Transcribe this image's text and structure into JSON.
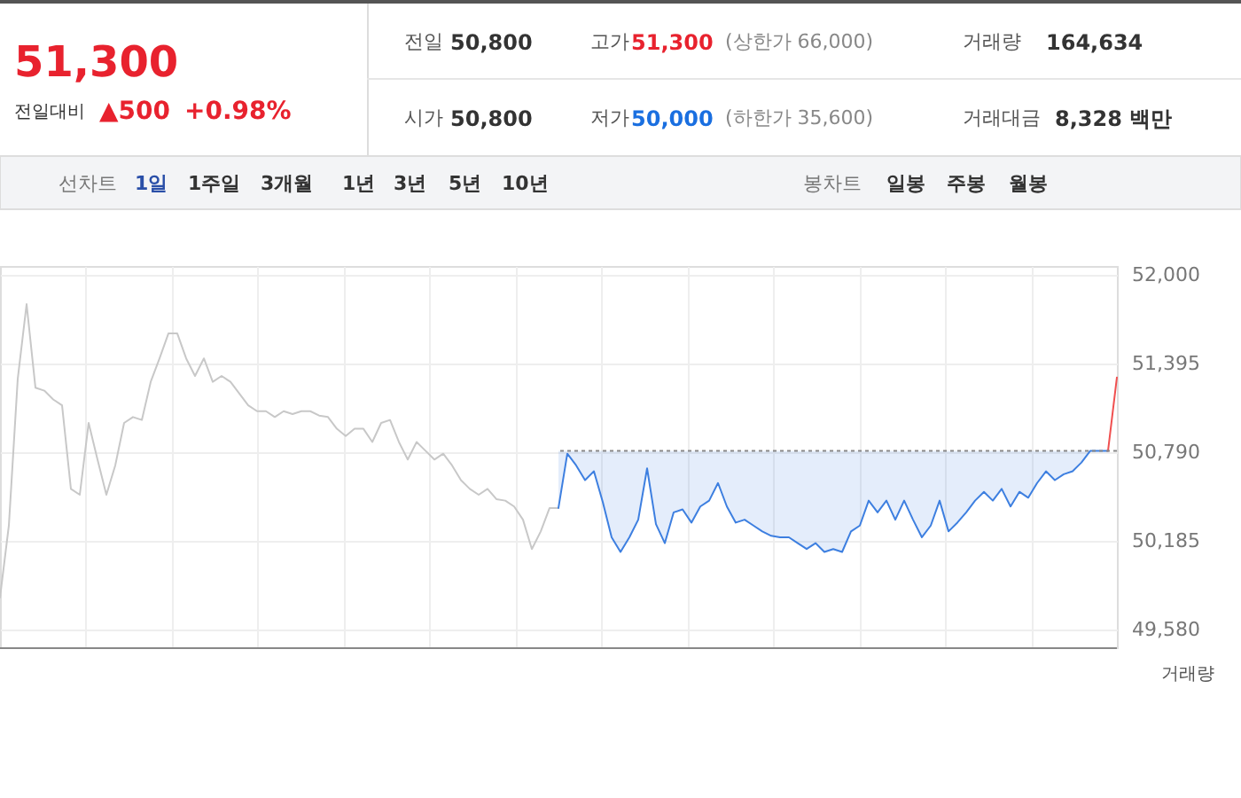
{
  "chart_data": {
    "type": "line",
    "categories": [
      null,
      null,
      null,
      null,
      null,
      null,
      null,
      null,
      null,
      null,
      null,
      null,
      null,
      null,
      null,
      null,
      null,
      null,
      null,
      null,
      null,
      null,
      null,
      null,
      null,
      null,
      null,
      null,
      null,
      null,
      null,
      null,
      null,
      null,
      null,
      null,
      null,
      null,
      null,
      null,
      null,
      null,
      null,
      null,
      null,
      null,
      null,
      null,
      null,
      null,
      null,
      null,
      null,
      null,
      null,
      null,
      null,
      null,
      null,
      null,
      null,
      null,
      null,
      null,
      null,
      null,
      null,
      null,
      null,
      null,
      null,
      null,
      null,
      null,
      null,
      null,
      null,
      null,
      null,
      null,
      null,
      null,
      null,
      null,
      null,
      null,
      null,
      null,
      null,
      null,
      null,
      null,
      null,
      null,
      null,
      null,
      null,
      null,
      null,
      null,
      null,
      null,
      null,
      null,
      null,
      null,
      null,
      null,
      null,
      null,
      null,
      null,
      null,
      null,
      null,
      null,
      null,
      null,
      null,
      null,
      null,
      null,
      null,
      null,
      null,
      null,
      null
    ],
    "series": [
      {
        "type": "line",
        "color": "#c8c8c8",
        "values": [
          49800,
          50290,
          51290,
          51800,
          51230,
          51210,
          51150,
          51110,
          50540,
          50500,
          50990,
          50740,
          50500,
          50700,
          50990,
          51030,
          51010,
          51270,
          51430,
          51600,
          51600,
          51430,
          51310,
          51430,
          51270,
          51310,
          51270,
          51190,
          51110,
          51070,
          51070,
          51030,
          51070,
          51050,
          51070,
          51070,
          51040,
          51030,
          50950,
          50900,
          50950,
          50950,
          50860,
          50990,
          51010,
          50860,
          50740,
          50860,
          50800,
          50740,
          50780,
          50700,
          50600,
          50540,
          50500,
          50540,
          50470,
          50460,
          50420,
          50330,
          50130,
          50250,
          50410,
          50410,
          null,
          null,
          null,
          null,
          null,
          null,
          null,
          null,
          null,
          null,
          null,
          null,
          null,
          null,
          null,
          null,
          null,
          null,
          null,
          null,
          null,
          null,
          null,
          null,
          null,
          null,
          null,
          null,
          null,
          null,
          null,
          null,
          null,
          null,
          null,
          null,
          null,
          null,
          null,
          null,
          null,
          null,
          null,
          null,
          null,
          null,
          null,
          null,
          null,
          null,
          null,
          null,
          null,
          null,
          null,
          null,
          null,
          null,
          null,
          null,
          null,
          null,
          null
        ]
      },
      {
        "type": "line",
        "color": "#3d7fe0",
        "values": [
          null,
          null,
          null,
          null,
          null,
          null,
          null,
          null,
          null,
          null,
          null,
          null,
          null,
          null,
          null,
          null,
          null,
          null,
          null,
          null,
          null,
          null,
          null,
          null,
          null,
          null,
          null,
          null,
          null,
          null,
          null,
          null,
          null,
          null,
          null,
          null,
          null,
          null,
          null,
          null,
          null,
          null,
          null,
          null,
          null,
          null,
          null,
          null,
          null,
          null,
          null,
          null,
          null,
          null,
          null,
          null,
          null,
          null,
          null,
          null,
          null,
          null,
          null,
          50410,
          50780,
          50700,
          50600,
          50660,
          50450,
          50210,
          50110,
          50210,
          50330,
          50680,
          50300,
          50170,
          50380,
          50400,
          50310,
          50420,
          50460,
          50580,
          50420,
          50310,
          50330,
          50290,
          50250,
          50220,
          50210,
          50210,
          50170,
          50130,
          50170,
          50110,
          50130,
          50110,
          50250,
          50290,
          50460,
          50380,
          50460,
          50330,
          50460,
          50330,
          50210,
          50290,
          50460,
          50250,
          50310,
          50380,
          50460,
          50520,
          50460,
          50540,
          50420,
          50520,
          50480,
          50580,
          50660,
          50600,
          50640,
          50660,
          50720,
          50800,
          50800,
          50800,
          null
        ],
        "lower": [
          null,
          null,
          null,
          null,
          null,
          null,
          null,
          null,
          null,
          null,
          null,
          null,
          null,
          null,
          null,
          null,
          null,
          null,
          null,
          null,
          null,
          null,
          null,
          null,
          null,
          null,
          null,
          null,
          null,
          null,
          null,
          null,
          null,
          null,
          null,
          null,
          null,
          null,
          null,
          null,
          null,
          null,
          null,
          null,
          null,
          null,
          null,
          null,
          null,
          null,
          null,
          null,
          null,
          null,
          null,
          null,
          null,
          null,
          null,
          null,
          null,
          null,
          null,
          50410,
          50780,
          50700,
          50600,
          50660,
          50450,
          50210,
          50110,
          50210,
          50330,
          50680,
          50300,
          50170,
          50380,
          50400,
          50310,
          50420,
          50460,
          50580,
          50420,
          50310,
          50330,
          50290,
          50250,
          50220,
          50210,
          50210,
          50170,
          50130,
          50170,
          50110,
          50130,
          50110,
          50250,
          50290,
          50460,
          50380,
          50460,
          50330,
          50460,
          50330,
          50210,
          50290,
          50460,
          50250,
          50310,
          50380,
          50460,
          50520,
          50460,
          50540,
          50420,
          50520,
          50480,
          50580,
          50660,
          50600,
          50640,
          50660,
          50720,
          50800,
          50800,
          50800,
          null
        ],
        "upper": [
          null,
          null,
          null,
          null,
          null,
          null,
          null,
          null,
          null,
          null,
          null,
          null,
          null,
          null,
          null,
          null,
          null,
          null,
          null,
          null,
          null,
          null,
          null,
          null,
          null,
          null,
          null,
          null,
          null,
          null,
          null,
          null,
          null,
          null,
          null,
          null,
          null,
          null,
          null,
          null,
          null,
          null,
          null,
          null,
          null,
          null,
          null,
          null,
          null,
          null,
          null,
          null,
          null,
          null,
          null,
          null,
          null,
          null,
          null,
          null,
          null,
          null,
          null,
          50800,
          50800,
          50800,
          50800,
          50800,
          50800,
          50800,
          50800,
          50800,
          50800,
          50800,
          50800,
          50800,
          50800,
          50800,
          50800,
          50800,
          50800,
          50800,
          50800,
          50800,
          50800,
          50800,
          50800,
          50800,
          50800,
          50800,
          50800,
          50800,
          50800,
          50800,
          50800,
          50800,
          50800,
          50800,
          50800,
          50800,
          50800,
          50800,
          50800,
          50800,
          50800,
          50800,
          50800,
          50800,
          50800,
          50800,
          50800,
          50800,
          50800,
          50800,
          50800,
          50800,
          50800,
          50800,
          50800,
          50800,
          50800,
          50800,
          50800,
          50800,
          50800,
          50800,
          null
        ]
      },
      {
        "type": "line",
        "color": "#f05050",
        "values": [
          null,
          null,
          null,
          null,
          null,
          null,
          null,
          null,
          null,
          null,
          null,
          null,
          null,
          null,
          null,
          null,
          null,
          null,
          null,
          null,
          null,
          null,
          null,
          null,
          null,
          null,
          null,
          null,
          null,
          null,
          null,
          null,
          null,
          null,
          null,
          null,
          null,
          null,
          null,
          null,
          null,
          null,
          null,
          null,
          null,
          null,
          null,
          null,
          null,
          null,
          null,
          null,
          null,
          null,
          null,
          null,
          null,
          null,
          null,
          null,
          null,
          null,
          null,
          null,
          null,
          null,
          null,
          null,
          null,
          null,
          null,
          null,
          null,
          null,
          null,
          null,
          null,
          null,
          null,
          null,
          null,
          null,
          null,
          null,
          null,
          null,
          null,
          null,
          null,
          null,
          null,
          null,
          null,
          null,
          null,
          null,
          null,
          null,
          null,
          null,
          null,
          null,
          null,
          null,
          null,
          null,
          null,
          null,
          null,
          null,
          null,
          null,
          null,
          null,
          null,
          null,
          null,
          null,
          null,
          null,
          null,
          null,
          null,
          null,
          null,
          50800,
          51300
        ]
      }
    ],
    "ylim": [
      49460,
      52060
    ],
    "yticks": [
      {
        "value": 49580,
        "label": "49,580"
      },
      {
        "value": 50185,
        "label": "50,185"
      },
      {
        "value": 50790,
        "label": "50,790"
      },
      {
        "value": 51395,
        "label": "51,395"
      },
      {
        "value": 52000,
        "label": "52,000"
      }
    ],
    "ref_lines": [
      {
        "axis": "y",
        "value": 50800,
        "color": "#888888",
        "line_style": "dotted"
      }
    ],
    "grid": true,
    "tick_labels": "y",
    "marker": "none",
    "line_style": "solid",
    "annotations": [
      "51,300",
      "전일대비",
      "▲500",
      "+0.98%",
      "전일",
      "50,800",
      "고가",
      "51,300",
      "(상한가 66,000)",
      "거래량",
      "164,634",
      "시가",
      "50,800",
      "저가",
      "50,000",
      "(하한가 35,600)",
      "거래대금",
      "8,328 백만",
      "선차트",
      "1일",
      "1주일",
      "3개월",
      "1년",
      "3년",
      "5년",
      "10년",
      "봉차트",
      "일봉",
      "주봉",
      "월봉",
      "거래량"
    ]
  }
}
